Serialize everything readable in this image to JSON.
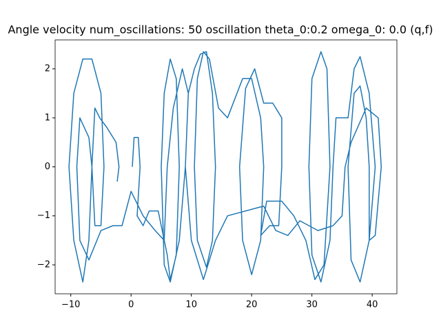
{
  "chart_data": {
    "type": "line",
    "title": "Angle velocity num_oscillations: 50 oscillation theta_0:0.2 omega_0: 0.0 (q,f)",
    "xlim": [
      -12.6,
      44.1
    ],
    "ylim": [
      -2.59,
      2.59
    ],
    "xticks": [
      {
        "value": -10,
        "label": "−10"
      },
      0,
      10,
      20,
      30,
      40
    ],
    "yticks": [
      {
        "value": -2,
        "label": "−2"
      },
      {
        "value": -1,
        "label": "−1"
      },
      0,
      1,
      2
    ],
    "series": [
      {
        "color": "#1f77b4",
        "x": [
          0.2,
          0.5,
          1.2,
          1.5,
          1,
          2,
          3,
          4.5,
          6,
          6.5,
          7.5,
          8,
          7.5,
          6.5,
          5.5,
          5,
          5.5,
          6.5,
          8,
          9,
          9.5,
          10.5,
          11.5,
          12.5,
          13.5,
          14,
          13.5,
          12.5,
          11,
          10.5,
          11,
          12,
          13,
          14.5,
          16,
          18.5,
          20,
          21.5,
          22,
          21.5,
          20,
          18.5,
          18,
          19,
          20.5,
          22,
          23.5,
          25,
          25,
          24.5,
          23,
          21.5,
          22.5,
          25,
          27,
          29,
          30.5,
          32,
          33,
          32.5,
          31.5,
          30,
          29.5,
          30,
          31.5,
          33,
          33.5,
          34,
          36,
          37,
          38,
          39.5,
          40.5,
          39.5,
          38,
          36.5,
          36,
          37,
          38,
          39,
          39.5,
          39.5,
          40.5,
          41.5,
          41,
          39,
          36.5,
          35.5,
          35,
          33.5,
          31,
          28,
          26,
          24,
          22,
          16,
          14,
          12,
          10,
          9,
          9.5,
          8.5,
          7,
          6,
          5.5,
          4,
          2,
          0,
          -1.5,
          -3,
          -5,
          -7,
          -8.5,
          -9,
          -8.5,
          -7,
          -6.5,
          -7,
          -8,
          -9.5,
          -10.3,
          -9.5,
          -8,
          -6.5,
          -5,
          -4.5,
          -5,
          -6,
          -6.5,
          -6,
          -5.2,
          -4,
          -2.5,
          -2,
          -2.3
        ],
        "values": [
          0,
          0.6,
          0.6,
          0,
          -1,
          -1.2,
          -0.9,
          -0.9,
          -1.8,
          -2.3,
          -1.8,
          0,
          1.8,
          2.2,
          1.5,
          0,
          -2,
          -2.35,
          -1.5,
          0,
          1.5,
          2,
          2.3,
          2.35,
          1.5,
          0,
          -1.5,
          -2.05,
          -1.5,
          0,
          1.8,
          2.35,
          2.2,
          1.2,
          1,
          1.8,
          1.8,
          1,
          0,
          -1.5,
          -2.2,
          -1.5,
          0,
          1.6,
          2,
          1.3,
          1.3,
          1,
          0,
          -1.2,
          -1.2,
          -1.4,
          -0.7,
          -0.7,
          -1,
          -1.5,
          -2.3,
          -2,
          0,
          2,
          2.35,
          1.8,
          0,
          -1.8,
          -2.35,
          -1.5,
          0,
          1,
          1,
          2,
          2.25,
          1.5,
          0,
          -1.5,
          -2.35,
          -1.9,
          0,
          1.5,
          1.65,
          1,
          0,
          -1.5,
          -1.4,
          0,
          1,
          1.2,
          0.5,
          0,
          -1,
          -1.2,
          -1.3,
          -1.1,
          -1.4,
          -1.3,
          -0.8,
          -1,
          -1.5,
          -2.3,
          -1.5,
          0,
          1.5,
          2,
          1.2,
          0,
          -1.5,
          -1.3,
          -1,
          -0.5,
          -1.2,
          -1.2,
          -1.3,
          -1.9,
          -1.5,
          0,
          1,
          0.6,
          0,
          -1.5,
          -2.35,
          -1.5,
          0,
          1.5,
          2.2,
          2.2,
          1.5,
          0,
          -1.2,
          -1.2,
          0,
          1.2,
          1,
          0.8,
          0.5,
          0,
          -0.3
        ]
      }
    ]
  }
}
